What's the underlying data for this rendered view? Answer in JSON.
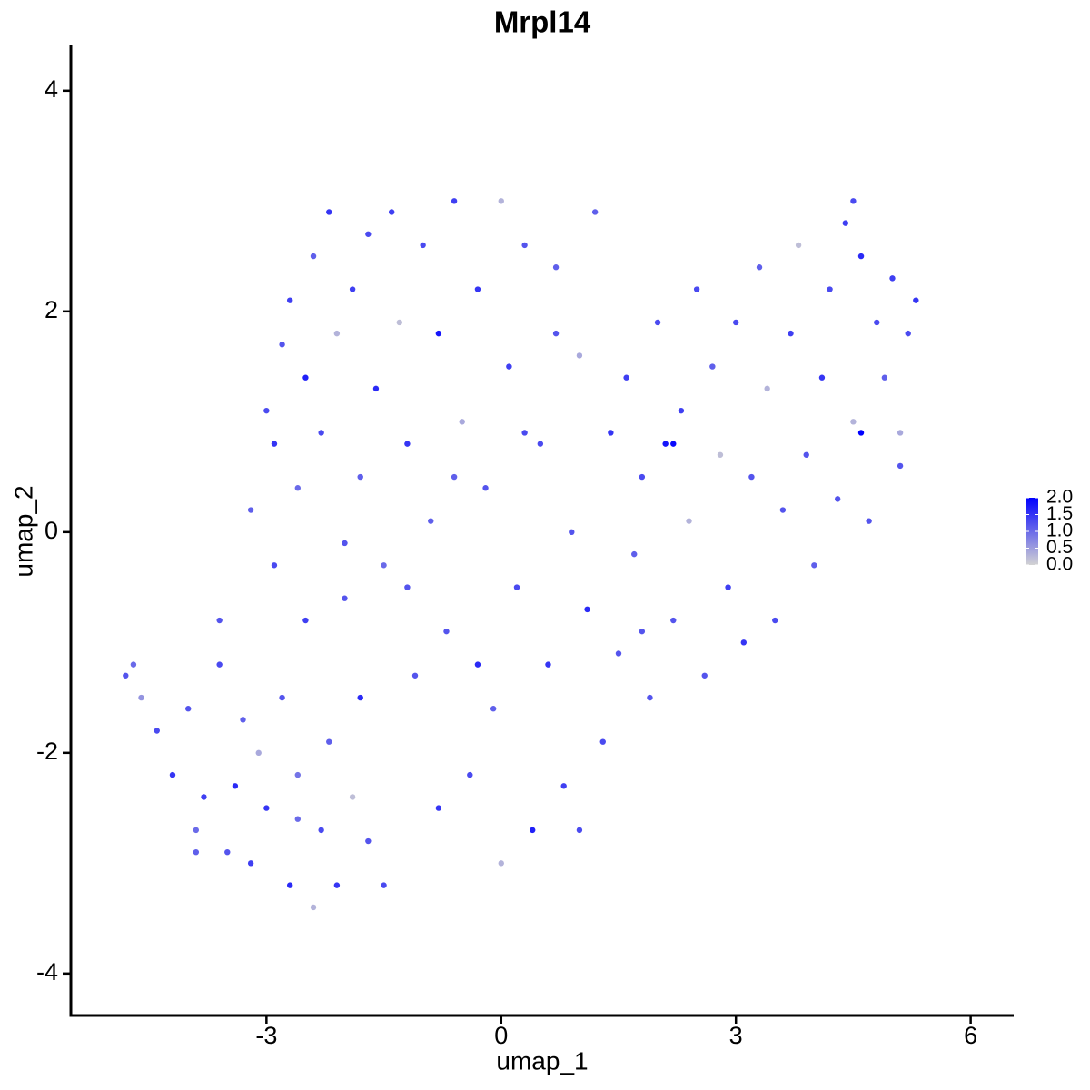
{
  "chart_data": {
    "type": "scatter",
    "title": "Mrpl14",
    "xlabel": "umap_1",
    "ylabel": "umap_2",
    "x": [
      -4.8,
      -4.7,
      -4.6,
      -4.4,
      -4.2,
      -4.0,
      -3.9,
      -3.8,
      -3.6,
      -3.5,
      -3.4,
      -3.3,
      -3.2,
      -3.1,
      -3.0,
      -2.9,
      -2.8,
      -2.7,
      -2.6,
      -2.5,
      -2.4,
      -2.3,
      -2.2,
      -2.1,
      -2.0,
      -1.9,
      -1.8,
      -1.7,
      -3.2,
      -3.0,
      -2.9,
      -2.8,
      -2.7,
      -2.6,
      -2.5,
      -2.4,
      -2.3,
      -2.2,
      -2.1,
      -2.0,
      -1.9,
      -1.8,
      -1.7,
      -1.6,
      -1.5,
      -1.4,
      -1.3,
      -1.2,
      -1.1,
      -1.0,
      -0.9,
      -0.8,
      -0.7,
      -0.6,
      -0.5,
      -0.4,
      -0.3,
      -0.2,
      -0.1,
      0.0,
      0.1,
      0.2,
      0.3,
      0.4,
      0.5,
      0.6,
      0.7,
      0.8,
      0.9,
      1.0,
      1.1,
      1.2,
      1.3,
      1.4,
      1.5,
      1.6,
      1.7,
      1.8,
      1.9,
      2.0,
      2.1,
      2.2,
      2.3,
      2.4,
      2.5,
      2.6,
      2.7,
      2.8,
      2.9,
      3.0,
      3.1,
      3.2,
      3.3,
      3.4,
      3.5,
      3.6,
      3.7,
      3.8,
      3.9,
      4.0,
      4.1,
      4.2,
      4.3,
      4.4,
      4.5,
      4.6,
      4.7,
      4.8,
      4.9,
      5.0,
      5.1,
      5.2,
      5.3,
      4.5,
      5.1,
      -3.6,
      -3.9,
      -1.5,
      0.0,
      1.0,
      -0.8,
      -1.2,
      0.3,
      -0.3,
      1.8,
      2.2,
      -2.6,
      -0.6,
      0.7,
      4.6
    ],
    "y": [
      -1.3,
      -1.2,
      -1.5,
      -1.8,
      -2.2,
      -1.6,
      -2.7,
      -2.4,
      -1.2,
      -2.9,
      -2.3,
      -1.7,
      -3.0,
      -2.0,
      -2.5,
      -0.3,
      -1.5,
      -3.2,
      -2.2,
      -0.8,
      -3.4,
      -2.7,
      -1.9,
      -3.2,
      -0.1,
      -2.4,
      -1.5,
      -2.8,
      0.2,
      1.1,
      0.8,
      1.7,
      2.1,
      0.4,
      1.4,
      2.5,
      0.9,
      2.9,
      1.8,
      -0.6,
      2.2,
      0.5,
      2.7,
      1.3,
      -0.3,
      2.9,
      1.9,
      0.8,
      -1.3,
      2.6,
      0.1,
      1.8,
      -0.9,
      3.0,
      1.0,
      -2.2,
      2.2,
      0.4,
      -1.6,
      3.0,
      1.5,
      -0.5,
      2.6,
      -2.7,
      0.8,
      -1.2,
      2.4,
      -2.3,
      0.0,
      1.6,
      -0.7,
      2.9,
      -1.9,
      0.9,
      -1.1,
      1.4,
      -0.2,
      0.5,
      -1.5,
      1.9,
      0.8,
      -0.8,
      1.1,
      0.1,
      2.2,
      -1.3,
      1.5,
      0.7,
      -0.5,
      1.9,
      -1.0,
      0.5,
      2.4,
      1.3,
      -0.8,
      0.2,
      1.8,
      2.6,
      0.7,
      -0.3,
      1.4,
      2.2,
      0.3,
      2.8,
      1.0,
      2.5,
      0.1,
      1.9,
      1.4,
      2.3,
      0.6,
      1.8,
      2.1,
      3.0,
      0.9,
      -0.8,
      -2.9,
      -3.2,
      -3.0,
      -2.7,
      -2.5,
      -0.5,
      0.9,
      -1.2,
      -0.9,
      0.8,
      -2.6,
      0.5,
      1.8,
      0.9
    ],
    "values": [
      1.2,
      1.0,
      0.6,
      1.3,
      1.5,
      1.2,
      1.0,
      1.4,
      1.3,
      1.2,
      1.6,
      1.1,
      1.4,
      0.4,
      1.5,
      1.3,
      1.2,
      1.6,
      0.9,
      1.4,
      0.3,
      1.3,
      1.1,
      1.5,
      1.2,
      0.2,
      1.6,
      1.2,
      1.1,
      1.3,
      1.5,
      1.2,
      1.4,
      1.0,
      1.7,
      1.1,
      1.3,
      1.5,
      0.3,
      1.2,
      1.4,
      1.1,
      1.3,
      1.6,
      1.0,
      1.4,
      0.2,
      1.5,
      1.2,
      1.3,
      1.1,
      1.8,
      1.2,
      1.4,
      0.4,
      1.3,
      1.5,
      1.2,
      1.1,
      0.3,
      1.4,
      1.3,
      1.2,
      1.7,
      1.3,
      1.5,
      1.1,
      1.4,
      1.2,
      0.4,
      1.6,
      1.1,
      1.3,
      1.5,
      1.2,
      1.4,
      1.1,
      1.3,
      1.2,
      1.3,
      1.8,
      1.2,
      1.4,
      0.3,
      1.3,
      1.2,
      1.1,
      0.2,
      1.4,
      1.3,
      1.5,
      1.2,
      1.1,
      0.3,
      1.3,
      1.2,
      1.4,
      0.2,
      1.2,
      1.1,
      1.5,
      1.3,
      1.2,
      1.4,
      0.3,
      1.6,
      1.2,
      1.3,
      1.1,
      1.4,
      1.2,
      1.3,
      1.5,
      1.3,
      0.4,
      1.2,
      1.1,
      1.3,
      0.3,
      1.3,
      1.5,
      1.2,
      1.3,
      1.6,
      1.2,
      1.9,
      1.0,
      1.1,
      1.2,
      2.0
    ],
    "xlim": [
      -5.5,
      6.55
    ],
    "xticks": [
      -3,
      0,
      3,
      6
    ],
    "ylim": [
      -4.38,
      4.41
    ],
    "yticks": [
      -4,
      -2,
      0,
      2,
      4
    ],
    "colorbar": {
      "colors": [
        "#d3d3d3",
        "#0000ff"
      ],
      "lim": [
        0,
        2
      ],
      "ticks": [
        {
          "value": 0,
          "label": "0.0"
        },
        {
          "value": 0.5,
          "label": "0.5"
        },
        {
          "value": 1,
          "label": "1.0"
        },
        {
          "value": 1.5,
          "label": "1.5"
        },
        {
          "value": 2,
          "label": "2.0"
        }
      ]
    }
  }
}
